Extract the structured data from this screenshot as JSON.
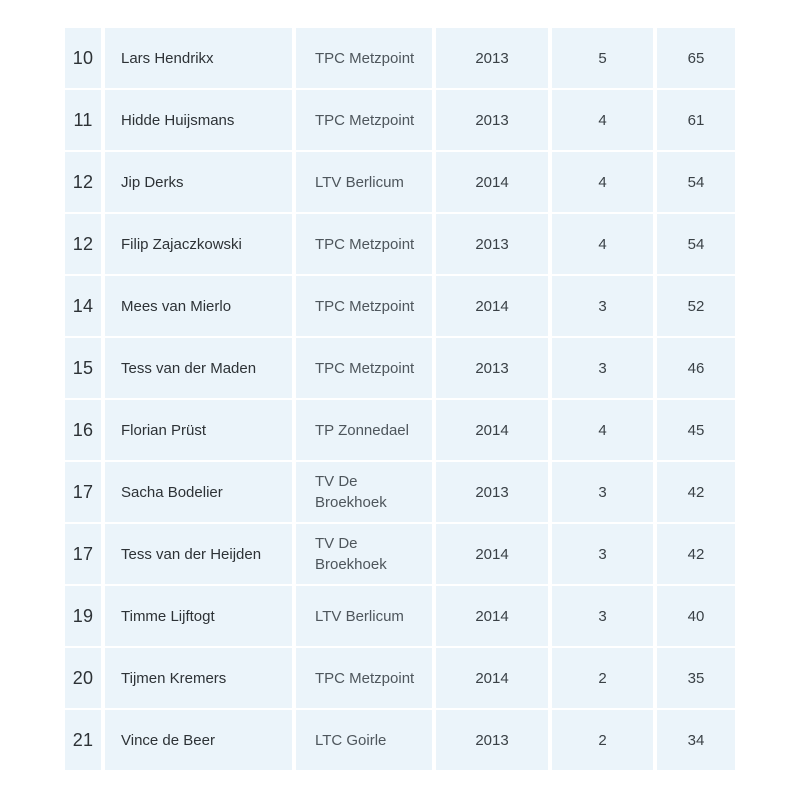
{
  "colors": {
    "cell_bg": "#ebf4fa",
    "page_bg": "#ffffff",
    "text_primary": "#2d3236",
    "text_secondary": "#4e565c",
    "text_numeric": "#3a4146"
  },
  "table": {
    "rows": [
      {
        "rank": "10",
        "name": "Lars Hendrikx",
        "club": "TPC Metzpoint",
        "year": "2013",
        "count": "5",
        "points": "65"
      },
      {
        "rank": "11",
        "name": "Hidde Huijsmans",
        "club": "TPC Metzpoint",
        "year": "2013",
        "count": "4",
        "points": "61"
      },
      {
        "rank": "12",
        "name": "Jip Derks",
        "club": "LTV Berlicum",
        "year": "2014",
        "count": "4",
        "points": "54"
      },
      {
        "rank": "12",
        "name": "Filip Zajaczkowski",
        "club": "TPC Metzpoint",
        "year": "2013",
        "count": "4",
        "points": "54"
      },
      {
        "rank": "14",
        "name": "Mees van Mierlo",
        "club": "TPC Metzpoint",
        "year": "2014",
        "count": "3",
        "points": "52"
      },
      {
        "rank": "15",
        "name": "Tess van der Maden",
        "club": "TPC Metzpoint",
        "year": "2013",
        "count": "3",
        "points": "46"
      },
      {
        "rank": "16",
        "name": "Florian Prüst",
        "club": "TP Zonnedael",
        "year": "2014",
        "count": "4",
        "points": "45"
      },
      {
        "rank": "17",
        "name": "Sacha Bodelier",
        "club": "TV De Broekhoek",
        "year": "2013",
        "count": "3",
        "points": "42"
      },
      {
        "rank": "17",
        "name": "Tess van der Heijden",
        "club": "TV De Broekhoek",
        "year": "2014",
        "count": "3",
        "points": "42"
      },
      {
        "rank": "19",
        "name": "Timme Lijftogt",
        "club": "LTV Berlicum",
        "year": "2014",
        "count": "3",
        "points": "40"
      },
      {
        "rank": "20",
        "name": "Tijmen Kremers",
        "club": "TPC Metzpoint",
        "year": "2014",
        "count": "2",
        "points": "35"
      },
      {
        "rank": "21",
        "name": "Vince de Beer",
        "club": "LTC Goirle",
        "year": "2013",
        "count": "2",
        "points": "34"
      }
    ]
  }
}
